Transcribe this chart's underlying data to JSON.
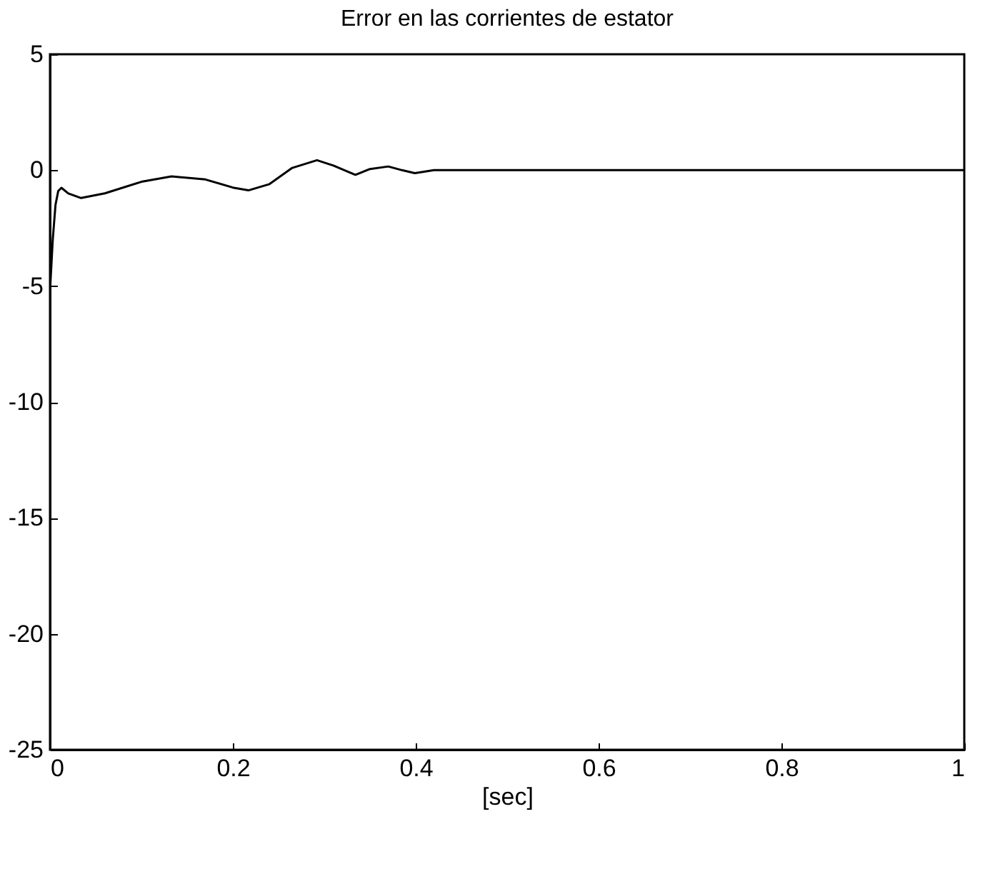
{
  "chart_data": {
    "type": "line",
    "title": "Error en las corrientes de estator",
    "xlabel": "[sec]",
    "x": [
      0,
      0.003,
      0.006,
      0.009,
      0.0125,
      0.02,
      0.034,
      0.06,
      0.1,
      0.133,
      0.17,
      0.2,
      0.217,
      0.24,
      0.265,
      0.292,
      0.31,
      0.334,
      0.35,
      0.37,
      0.385,
      0.399,
      0.42,
      0.5,
      0.6,
      0.8,
      1
    ],
    "series": [
      {
        "color": "#000000",
        "values": [
          -5.2,
          -3,
          -1.5,
          -0.9,
          -0.76,
          -1.0,
          -1.2,
          -1.0,
          -0.5,
          -0.27,
          -0.4,
          -0.75,
          -0.87,
          -0.6,
          0.1,
          0.43,
          0.2,
          -0.2,
          0.05,
          0.16,
          0.0,
          -0.13,
          0.0,
          0,
          0,
          0,
          0
        ]
      }
    ],
    "xlim": [
      0,
      1
    ],
    "ylim": [
      -25,
      5
    ],
    "xticks": [
      0,
      0.2,
      0.4,
      0.6,
      0.8,
      1
    ],
    "yticks": [
      -25,
      -20,
      -15,
      -10,
      -5,
      0,
      5
    ],
    "grid": false
  }
}
